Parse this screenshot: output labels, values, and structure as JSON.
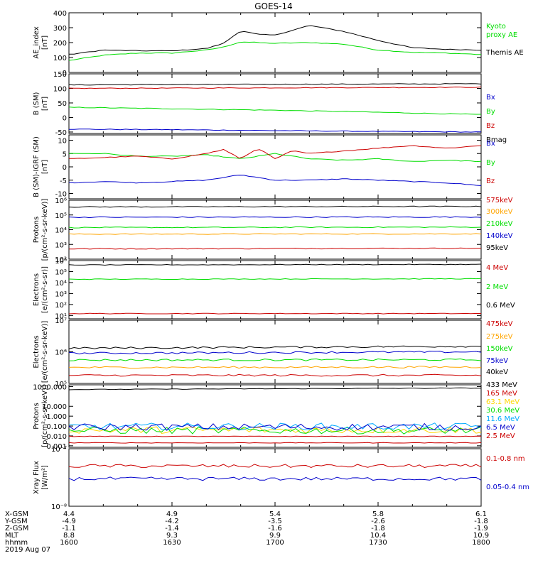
{
  "title": "GOES-14",
  "chart_data": [
    {
      "type": "line",
      "ylabel": [
        "AE_index",
        "[nT]"
      ],
      "ylim": [
        0,
        400
      ],
      "ylog": false,
      "yticks": [
        "0",
        "100",
        "200",
        "300",
        "400"
      ],
      "yvals": [
        0,
        100,
        200,
        300,
        400
      ],
      "series": [
        {
          "name": "Kyoto proxy AE",
          "label_lines": [
            "Kyoto",
            "proxy AE"
          ],
          "color": "#00dd00",
          "x": [
            0,
            10,
            20,
            30,
            40,
            45,
            50,
            55,
            60,
            70,
            80,
            90,
            100,
            110,
            120
          ],
          "values": [
            80,
            115,
            130,
            130,
            150,
            170,
            205,
            200,
            195,
            200,
            190,
            150,
            135,
            130,
            120
          ]
        },
        {
          "name": "Themis AE",
          "label_lines": [
            "Themis AE"
          ],
          "color": "#000000",
          "x": [
            0,
            10,
            20,
            30,
            40,
            45,
            50,
            55,
            60,
            70,
            80,
            90,
            100,
            110,
            120
          ],
          "values": [
            120,
            150,
            145,
            145,
            160,
            195,
            280,
            255,
            250,
            315,
            275,
            215,
            165,
            155,
            150
          ]
        }
      ]
    },
    {
      "type": "line",
      "ylabel": [
        "B (SM)",
        "[nT]"
      ],
      "ylim": [
        -55,
        150
      ],
      "ylog": false,
      "yticks": [
        "-50",
        "0",
        "50",
        "100",
        "150"
      ],
      "yvals": [
        -50,
        0,
        50,
        100,
        150
      ],
      "series": [
        {
          "name": "Bx",
          "label_lines": [
            "Bx"
          ],
          "color": "#0000cc",
          "x": [
            0,
            30,
            60,
            90,
            120
          ],
          "values": [
            -40,
            -42,
            -45,
            -48,
            -50
          ]
        },
        {
          "name": "By",
          "label_lines": [
            "By"
          ],
          "color": "#00dd00",
          "x": [
            0,
            30,
            60,
            90,
            120
          ],
          "values": [
            35,
            30,
            25,
            18,
            10
          ]
        },
        {
          "name": "Bz",
          "label_lines": [
            "Bz"
          ],
          "color": "#cc0000",
          "x": [
            0,
            30,
            60,
            90,
            120
          ],
          "values": [
            100,
            101,
            102,
            103,
            104
          ]
        },
        {
          "name": "Bmag",
          "label_lines": [
            "Bmag"
          ],
          "color": "#000000",
          "x": [
            0,
            30,
            60,
            90,
            120
          ],
          "values": [
            112,
            113,
            114,
            115,
            116
          ]
        }
      ]
    },
    {
      "type": "line",
      "ylabel": [
        "B (SM)-IGRF (SM)",
        "[nT]"
      ],
      "ylim": [
        -12,
        12
      ],
      "ylog": false,
      "yticks": [
        "-10",
        "-5",
        "0",
        "5",
        "10"
      ],
      "yvals": [
        -10,
        -5,
        0,
        5,
        10
      ],
      "series": [
        {
          "name": "Bx",
          "label_lines": [
            "Bx"
          ],
          "color": "#0000cc",
          "x": [
            0,
            10,
            20,
            30,
            40,
            50,
            60,
            70,
            80,
            90,
            100,
            110,
            120
          ],
          "values": [
            -6,
            -5.5,
            -6,
            -5.5,
            -5,
            -3,
            -5,
            -5,
            -4.5,
            -5,
            -5.5,
            -6,
            -7
          ]
        },
        {
          "name": "By",
          "label_lines": [
            "By"
          ],
          "color": "#00dd00",
          "x": [
            0,
            10,
            20,
            30,
            40,
            50,
            60,
            70,
            80,
            90,
            100,
            110,
            120
          ],
          "values": [
            5,
            5,
            4,
            4,
            4.5,
            3,
            5,
            3,
            2.5,
            3,
            2,
            2.5,
            2
          ]
        },
        {
          "name": "Bz",
          "label_lines": [
            "Bz"
          ],
          "color": "#cc0000",
          "x": [
            0,
            10,
            20,
            30,
            40,
            45,
            50,
            55,
            60,
            65,
            70,
            80,
            90,
            100,
            110,
            120
          ],
          "values": [
            3,
            3.5,
            4,
            3,
            5,
            6.5,
            3,
            7,
            3,
            6,
            5,
            6,
            7,
            8,
            7,
            8
          ]
        }
      ]
    },
    {
      "type": "line",
      "ylabel": [
        "Protons",
        "[p/(cm²-s-sr-keV)]"
      ],
      "ylim": [
        100,
        1000000
      ],
      "ylog": true,
      "yticks": [
        "10²",
        "10³",
        "10⁴",
        "10⁵",
        "10⁶"
      ],
      "yvals": [
        100,
        1000,
        10000,
        100000,
        1000000
      ],
      "series": [
        {
          "name": "575keV",
          "label_lines": [
            "575keV"
          ],
          "color": "#cc0000",
          "x": [
            0,
            120
          ],
          "values": [
            500,
            550
          ]
        },
        {
          "name": "300keV",
          "label_lines": [
            "300keV"
          ],
          "color": "#ffa500",
          "x": [
            0,
            120
          ],
          "values": [
            5000,
            5200
          ]
        },
        {
          "name": "210keV",
          "label_lines": [
            "210keV"
          ],
          "color": "#00dd00",
          "x": [
            0,
            120
          ],
          "values": [
            14000,
            15000
          ]
        },
        {
          "name": "140keV",
          "label_lines": [
            "140keV"
          ],
          "color": "#0000cc",
          "x": [
            0,
            120
          ],
          "values": [
            70000,
            72000
          ]
        },
        {
          "name": "95keV",
          "label_lines": [
            "95keV"
          ],
          "color": "#000000",
          "x": [
            0,
            120
          ],
          "values": [
            350000,
            380000
          ]
        }
      ]
    },
    {
      "type": "line",
      "ylabel": [
        "Electrons",
        "[e/(cm²-s-sr)]"
      ],
      "ylim": [
        5,
        1000000
      ],
      "ylog": true,
      "yticks": [
        "10¹",
        "10²",
        "10³",
        "10⁴",
        "10⁵",
        "10⁶"
      ],
      "yvals": [
        10,
        100,
        1000,
        10000,
        100000,
        1000000
      ],
      "series": [
        {
          "name": "4 MeV",
          "label_lines": [
            "4 MeV"
          ],
          "color": "#cc0000",
          "x": [
            0,
            120
          ],
          "values": [
            15,
            15
          ]
        },
        {
          "name": "2 MeV",
          "label_lines": [
            "2 MeV"
          ],
          "color": "#00dd00",
          "x": [
            0,
            120
          ],
          "values": [
            20000,
            22000
          ]
        },
        {
          "name": "0.6 MeV",
          "label_lines": [
            "0.6 MeV"
          ],
          "color": "#000000",
          "x": [
            0,
            120
          ],
          "values": [
            400000,
            450000
          ]
        }
      ]
    },
    {
      "type": "line",
      "ylabel": [
        "Electrons",
        "[e/(cm²-s-sr-keV)]"
      ],
      "ylim": [
        100000,
        10000000
      ],
      "ylog": true,
      "yticks": [
        "10⁵",
        "10⁶",
        "10⁷"
      ],
      "yvals": [
        100000,
        1000000,
        10000000
      ],
      "series": [
        {
          "name": "475keV",
          "label_lines": [
            "475keV"
          ],
          "color": "#cc0000",
          "x": [
            0,
            120
          ],
          "values": [
            180000,
            180000
          ]
        },
        {
          "name": "275keV",
          "label_lines": [
            "275keV"
          ],
          "color": "#ffa500",
          "x": [
            0,
            120
          ],
          "values": [
            320000,
            330000
          ]
        },
        {
          "name": "150keV",
          "label_lines": [
            "150keV"
          ],
          "color": "#00dd00",
          "x": [
            0,
            120
          ],
          "values": [
            550000,
            560000
          ]
        },
        {
          "name": "75keV",
          "label_lines": [
            "75keV"
          ],
          "color": "#0000cc",
          "x": [
            0,
            120
          ],
          "values": [
            900000,
            1000000
          ]
        },
        {
          "name": "40keV",
          "label_lines": [
            "40keV"
          ],
          "color": "#000000",
          "x": [
            0,
            120
          ],
          "values": [
            1300000,
            1500000
          ]
        }
      ]
    },
    {
      "type": "line",
      "ylabel": [
        "Protons",
        "[p/(cm²-s-sr-keV)]"
      ],
      "ylim": [
        0.0007,
        1500
      ],
      "ylog": true,
      "yticks": [
        "0.001",
        "0.010",
        "0.100",
        "1.000",
        "10.000",
        "1000.000"
      ],
      "yvals": [
        0.001,
        0.01,
        0.1,
        1,
        10,
        1000
      ],
      "series": [
        {
          "name": "433 MeV",
          "label_lines": [
            "433 MeV"
          ],
          "color": "#000000",
          "x": [
            0,
            120
          ],
          "values": [
            500,
            700
          ]
        },
        {
          "name": "165 MeV",
          "label_lines": [
            "165 MeV"
          ],
          "color": "#cc0000",
          "x": [
            0,
            120
          ],
          "values": [
            0.002,
            0.002
          ]
        },
        {
          "name": "63.1 MeV",
          "label_lines": [
            "63.1 MeV"
          ],
          "color": "#ffd700",
          "x": [
            0,
            120
          ],
          "values": [
            0.04,
            0.04
          ]
        },
        {
          "name": "30.6 MeV",
          "label_lines": [
            "30.6 MeV"
          ],
          "color": "#00dd00",
          "x": [
            0,
            120
          ],
          "values": [
            0.035,
            0.035
          ]
        },
        {
          "name": "11.6 MeV",
          "label_lines": [
            "11.6 MeV"
          ],
          "color": "#00aaff",
          "x": [
            0,
            120
          ],
          "values": [
            0.09,
            0.09
          ]
        },
        {
          "name": "6.5 MeV",
          "label_lines": [
            "6.5 MeV"
          ],
          "color": "#0000cc",
          "x": [
            0,
            120
          ],
          "values": [
            0.08,
            0.08
          ]
        },
        {
          "name": "2.5 MeV",
          "label_lines": [
            "2.5 MeV"
          ],
          "color": "#cc0000",
          "x": [
            0,
            120
          ],
          "values": [
            0.009,
            0.009
          ]
        }
      ]
    },
    {
      "type": "line",
      "ylabel": [
        "Xray Flux",
        "[W/m²]"
      ],
      "ylim": [
        1e-08,
        1e-07
      ],
      "ylog": true,
      "yticks": [
        "10⁻⁸",
        "10⁻⁷"
      ],
      "yvals": [
        1e-08,
        1e-07
      ],
      "series": [
        {
          "name": "0.1-0.8 nm",
          "label_lines": [
            "0.1-0.8 nm"
          ],
          "color": "#cc0000",
          "x": [
            0,
            120
          ],
          "values": 5e-08
        },
        {
          "name": "0.05-0.4 nm",
          "label_lines": [
            "0.05-0.4 nm"
          ],
          "color": "#0000cc",
          "x": [
            0,
            120
          ],
          "values": 3e-08
        }
      ]
    }
  ],
  "xaxis": {
    "minutes": [
      0,
      30,
      60,
      90,
      120
    ],
    "rows": [
      {
        "label": "X-GSM",
        "values": [
          "4.4",
          "4.9",
          "5.4",
          "5.8",
          "6.1"
        ]
      },
      {
        "label": "Y-GSM",
        "values": [
          "-4.9",
          "-4.2",
          "-3.5",
          "-2.6",
          "-1.8"
        ]
      },
      {
        "label": "Z-GSM",
        "values": [
          "-1.1",
          "-1.4",
          "-1.6",
          "-1.8",
          "-1.9"
        ]
      },
      {
        "label": "MLT",
        "values": [
          "8.8",
          "9.3",
          "9.9",
          "10.4",
          "10.9"
        ]
      },
      {
        "label": "hhmm",
        "values": [
          "1600",
          "1630",
          "1700",
          "1730",
          "1800"
        ]
      }
    ],
    "date": "2019 Aug 07"
  }
}
